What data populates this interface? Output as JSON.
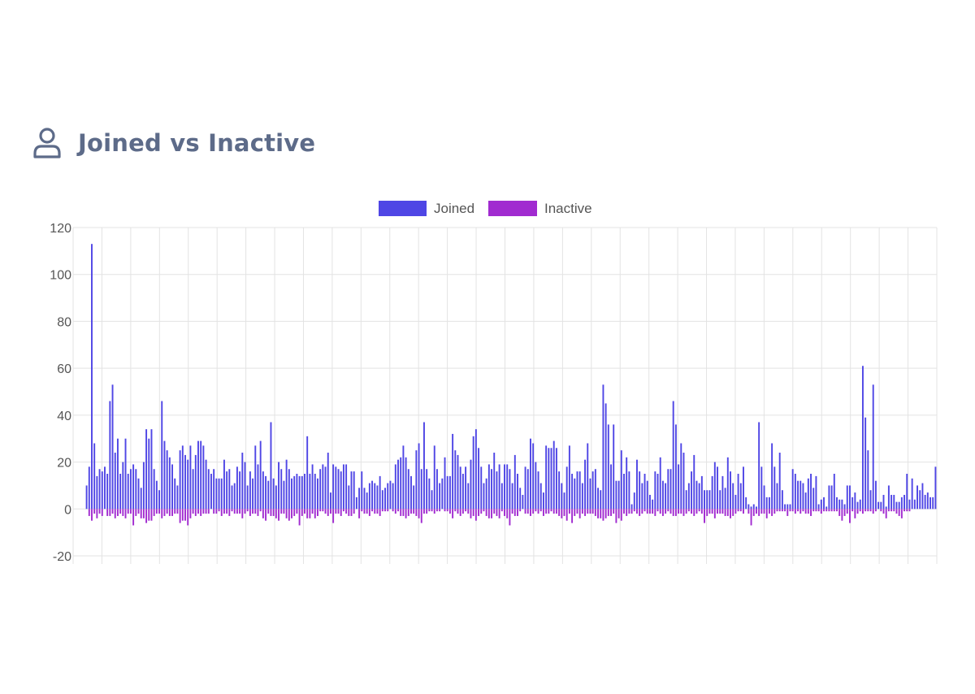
{
  "header": {
    "title": "Joined vs Inactive",
    "icon": "user-icon"
  },
  "colors": {
    "joined": "#4f46e5",
    "inactive": "#a12bd0",
    "grid": "#e3e3e3",
    "title": "#5d6b89"
  },
  "chart_data": {
    "type": "bar",
    "legend_position": "top-center",
    "grid": true,
    "ylim": [
      -20,
      120
    ],
    "y_ticks": [
      -20,
      0,
      20,
      40,
      60,
      80,
      100,
      120
    ],
    "x_tick_labels": [],
    "series": [
      {
        "name": "Joined",
        "values": [
          10,
          18,
          113,
          28,
          14,
          17,
          16,
          18,
          15,
          46,
          53,
          24,
          30,
          15,
          20,
          30,
          15,
          17,
          19,
          17,
          13,
          9,
          20,
          34,
          30,
          34,
          17,
          12,
          8,
          46,
          29,
          25,
          22,
          19,
          13,
          10,
          25,
          27,
          23,
          21,
          27,
          17,
          23,
          29,
          29,
          27,
          21,
          17,
          15,
          17,
          13,
          13,
          13,
          21,
          16,
          17,
          10,
          11,
          18,
          16,
          24,
          20,
          10,
          16,
          13,
          27,
          19,
          29,
          16,
          14,
          12,
          37,
          13,
          10,
          20,
          17,
          12,
          21,
          17,
          13,
          14,
          15,
          14,
          14,
          15,
          31,
          15,
          19,
          15,
          13,
          17,
          19,
          18,
          24,
          7,
          19,
          18,
          17,
          16,
          19,
          19,
          10,
          16,
          16,
          5,
          9,
          16,
          9,
          7,
          11,
          12,
          11,
          10,
          14,
          8,
          9,
          11,
          12,
          11,
          19,
          21,
          22,
          27,
          22,
          17,
          14,
          10,
          25,
          28,
          17,
          37,
          17,
          13,
          8,
          27,
          17,
          11,
          13,
          22,
          14,
          14,
          32,
          25,
          23,
          18,
          15,
          18,
          11,
          21,
          31,
          34,
          26,
          18,
          11,
          13,
          19,
          17,
          24,
          16,
          19,
          11,
          19,
          19,
          17,
          11,
          23,
          15,
          9,
          6,
          18,
          17,
          30,
          28,
          20,
          16,
          11,
          7,
          27,
          26,
          26,
          29,
          26,
          16,
          11,
          7,
          18,
          27,
          15,
          13,
          16,
          16,
          11,
          21,
          28,
          13,
          16,
          17,
          9,
          8,
          53,
          45,
          36,
          19,
          36,
          12,
          12,
          25,
          15,
          22,
          16,
          2,
          7,
          21,
          16,
          11,
          15,
          12,
          6,
          4,
          16,
          15,
          22,
          12,
          11,
          17,
          17,
          46,
          36,
          19,
          28,
          24,
          8,
          11,
          16,
          23,
          12,
          11,
          14,
          8,
          8,
          8,
          14,
          20,
          18,
          8,
          14,
          9,
          22,
          16,
          11,
          6,
          15,
          11,
          18,
          5,
          2,
          1,
          2,
          1,
          37,
          18,
          10,
          5,
          5,
          28,
          18,
          11,
          24,
          8,
          2,
          2,
          2,
          17,
          15,
          12,
          12,
          11,
          7,
          13,
          15,
          9,
          14,
          2,
          4,
          5,
          1,
          10,
          10,
          15,
          5,
          4,
          4,
          2,
          10,
          10,
          5,
          7,
          3,
          4,
          61,
          39,
          25,
          8,
          53,
          12,
          3,
          3,
          6,
          1,
          10,
          6,
          6,
          3,
          3,
          5,
          6,
          15,
          4,
          13,
          4,
          10,
          8,
          11,
          6,
          7,
          5,
          5,
          18
        ]
      },
      {
        "name": "Inactive",
        "values": [
          0,
          -3,
          -5,
          -2,
          -4,
          -2,
          -3,
          0,
          -3,
          -3,
          -2,
          -4,
          -3,
          -2,
          -3,
          -4,
          -2,
          -2,
          -7,
          -3,
          -2,
          -4,
          -4,
          -6,
          -5,
          -5,
          -3,
          -2,
          -2,
          -4,
          -3,
          -2,
          -3,
          -3,
          -2,
          -2,
          -6,
          -5,
          -5,
          -7,
          -4,
          -2,
          -3,
          -2,
          -3,
          -2,
          -2,
          -2,
          0,
          -2,
          -2,
          -1,
          -3,
          -2,
          -2,
          -3,
          -1,
          -2,
          -2,
          -2,
          -4,
          -2,
          -1,
          -3,
          -2,
          -2,
          -3,
          -1,
          -4,
          -5,
          -2,
          -3,
          -3,
          -4,
          -5,
          -2,
          -2,
          -4,
          -5,
          -4,
          -3,
          -2,
          -7,
          -3,
          -2,
          -4,
          -4,
          -2,
          -4,
          -3,
          -1,
          -1,
          -2,
          -3,
          -2,
          -6,
          -2,
          -2,
          -3,
          -1,
          -2,
          -3,
          -3,
          -2,
          0,
          -4,
          -1,
          -2,
          -2,
          -3,
          -1,
          -2,
          -2,
          -3,
          -1,
          -1,
          -1,
          0,
          -1,
          -2,
          -1,
          -3,
          -3,
          -4,
          -3,
          -2,
          -2,
          -3,
          -4,
          -6,
          -2,
          -2,
          -1,
          -1,
          -2,
          -1,
          -1,
          0,
          -1,
          -1,
          -2,
          -4,
          -1,
          -2,
          -3,
          -2,
          -1,
          -2,
          -4,
          -3,
          -5,
          -3,
          -2,
          -1,
          -3,
          -4,
          -4,
          -2,
          -3,
          -4,
          -1,
          -3,
          -4,
          -7,
          -2,
          -3,
          -3,
          -1,
          0,
          -2,
          -2,
          -3,
          -2,
          -1,
          -2,
          -1,
          -3,
          -2,
          -2,
          -1,
          -2,
          -2,
          -3,
          -4,
          -3,
          -5,
          -2,
          -6,
          -3,
          -2,
          -4,
          -2,
          -3,
          -2,
          -2,
          -2,
          -3,
          -4,
          -4,
          -5,
          -4,
          -3,
          -3,
          -2,
          -6,
          -4,
          -5,
          -2,
          -3,
          -2,
          -2,
          -1,
          -2,
          -3,
          -2,
          -1,
          -2,
          -2,
          -2,
          -3,
          -1,
          -2,
          -3,
          -2,
          -1,
          -2,
          -3,
          -3,
          -2,
          -2,
          -3,
          -2,
          -1,
          -2,
          -3,
          -2,
          -1,
          -2,
          -6,
          -3,
          -2,
          -2,
          -4,
          -2,
          -2,
          -2,
          -3,
          -3,
          -4,
          -3,
          -2,
          -1,
          -1,
          -2,
          0,
          -2,
          -7,
          -3,
          -2,
          -3,
          -2,
          -2,
          -4,
          -2,
          -3,
          -2,
          -1,
          -1,
          -1,
          -1,
          -3,
          -1,
          -1,
          -2,
          -1,
          -2,
          -1,
          -2,
          -2,
          -3,
          -1,
          -1,
          -1,
          -2,
          -1,
          -1,
          -1,
          -1,
          -1,
          -1,
          -3,
          -5,
          -3,
          -2,
          -6,
          -1,
          -4,
          -2,
          -1,
          -2,
          -1,
          -1,
          -1,
          -2,
          -1,
          0,
          -1,
          -2,
          -4,
          -1,
          -1,
          -1,
          -2,
          -3,
          -4,
          -1,
          -1,
          -1,
          0
        ]
      }
    ]
  }
}
